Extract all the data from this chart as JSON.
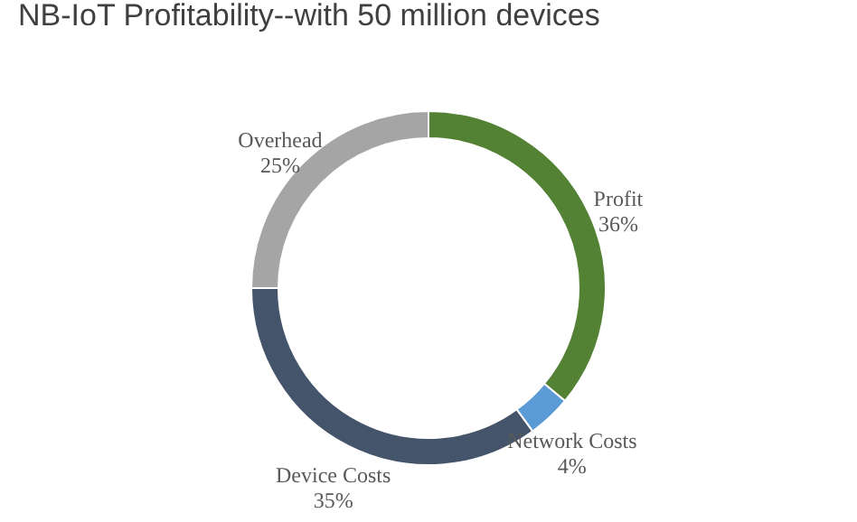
{
  "chart_data": {
    "type": "donut",
    "title": "NB-IoT Profitability--with 50 million devices",
    "categories": [
      "Profit",
      "Network Costs",
      "Device Costs",
      "Overhead"
    ],
    "values": [
      36,
      4,
      35,
      25
    ],
    "value_labels": [
      "36%",
      "4%",
      "35%",
      "25%"
    ],
    "colors": [
      "#548235",
      "#5b9bd5",
      "#44546a",
      "#a5a5a5"
    ],
    "legend": false
  }
}
